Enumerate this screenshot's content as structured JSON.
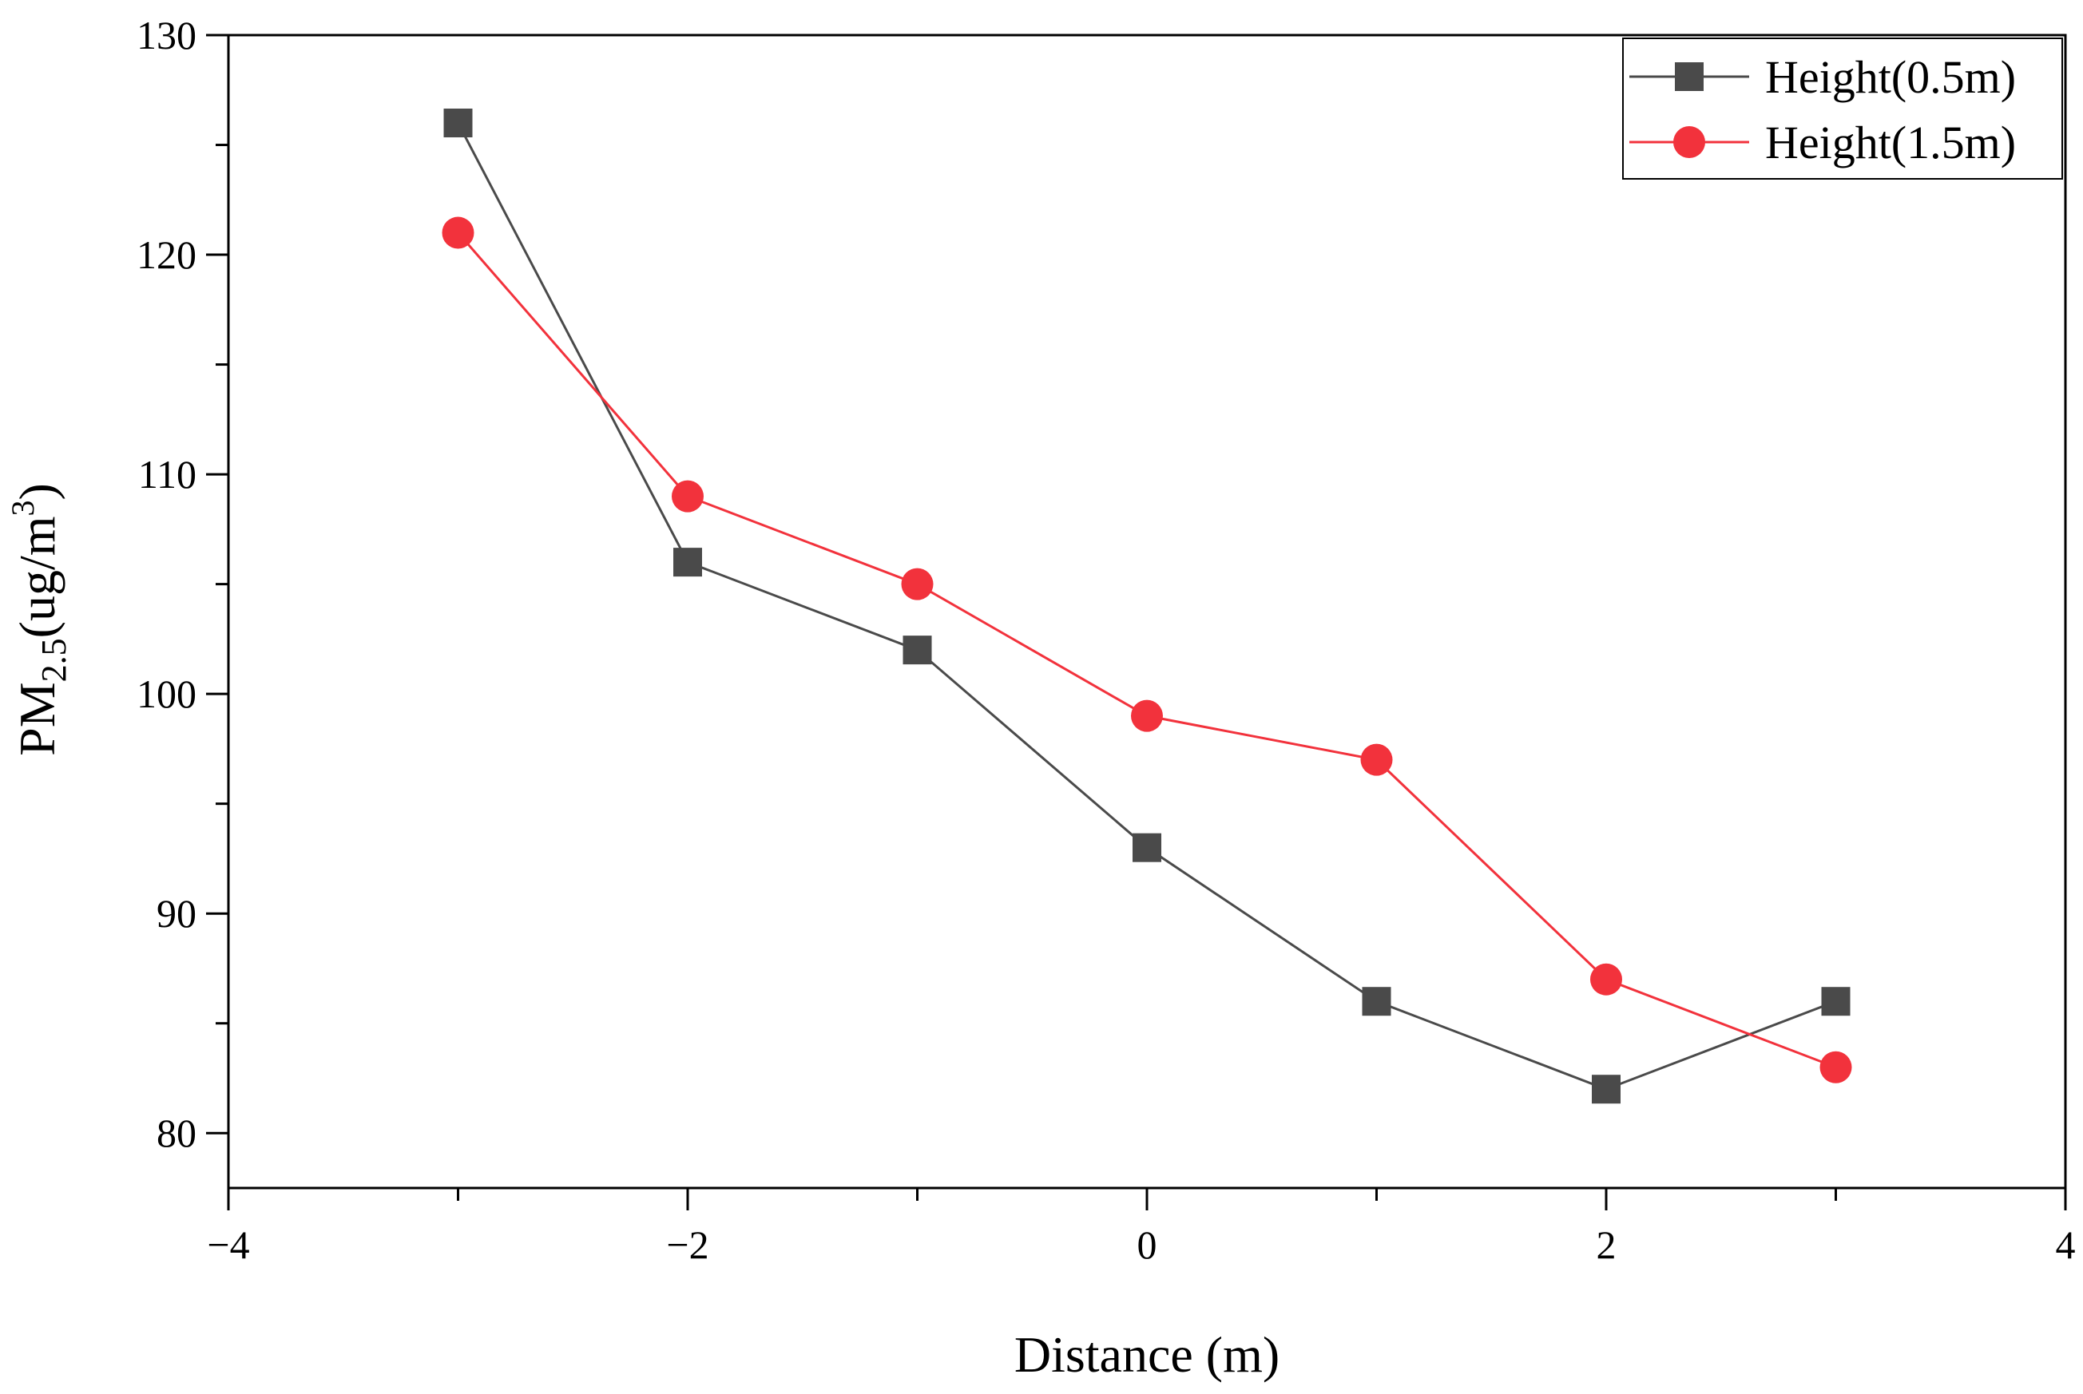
{
  "chart_data": {
    "type": "line",
    "title": "",
    "xlabel": "Distance (m)",
    "ylabel": {
      "prefix": "PM",
      "subscript": "2.5",
      "unit_open": "(ug/m",
      "superscript": "3",
      "unit_close": ")"
    },
    "xlim": [
      -4,
      4
    ],
    "ylim": [
      77.5,
      130
    ],
    "x_ticks": [
      -4,
      -2,
      0,
      2,
      4
    ],
    "x_tick_labels": [
      "−4",
      "−2",
      "0",
      "2",
      "4"
    ],
    "x_minor_ticks": [
      -3,
      -1,
      1,
      3
    ],
    "y_ticks": [
      80,
      90,
      100,
      110,
      120,
      130
    ],
    "y_tick_labels": [
      "80",
      "90",
      "100",
      "110",
      "120",
      "130"
    ],
    "y_minor_ticks": [
      85,
      95,
      105,
      115,
      125
    ],
    "grid": false,
    "legend_position": "top-right",
    "x": [
      -3,
      -2,
      -1,
      0,
      1,
      2,
      3
    ],
    "series": [
      {
        "name": "Height(0.5m)",
        "values": [
          126,
          106,
          102,
          93,
          86,
          82,
          86
        ],
        "color": "#4a4a4a",
        "marker": "square"
      },
      {
        "name": "Height(1.5m)",
        "values": [
          121,
          109,
          105,
          99,
          97,
          87,
          83
        ],
        "color": "#f2323c",
        "marker": "circle"
      }
    ]
  }
}
